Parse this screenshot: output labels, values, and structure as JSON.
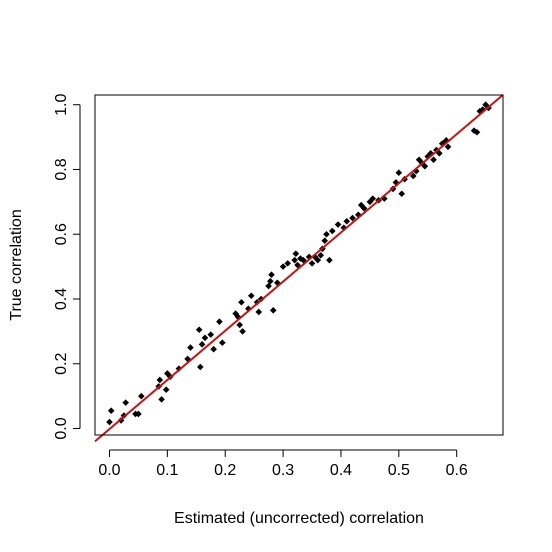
{
  "chart_data": {
    "type": "scatter",
    "title": "",
    "xlabel": "Estimated (uncorrected) correlation",
    "ylabel": "True correlation",
    "xlim": [
      -0.025,
      0.68
    ],
    "ylim": [
      -0.02,
      1.03
    ],
    "xticks": [
      0.0,
      0.1,
      0.2,
      0.3,
      0.4,
      0.5,
      0.6
    ],
    "xtick_labels": [
      "0.0",
      "0.1",
      "0.2",
      "0.3",
      "0.4",
      "0.5",
      "0.6"
    ],
    "yticks": [
      0.0,
      0.2,
      0.4,
      0.6,
      0.8,
      1.0
    ],
    "ytick_labels": [
      "0.0",
      "0.2",
      "0.4",
      "0.6",
      "0.8",
      "1.0"
    ],
    "grid": false,
    "point_color": "#000000",
    "line_color": "#cc1111",
    "fit_line": {
      "intercept": -0.0018,
      "slope": 1.518
    },
    "points": [
      [
        0.0,
        0.02
      ],
      [
        0.003,
        0.055
      ],
      [
        0.02,
        0.025
      ],
      [
        0.025,
        0.04
      ],
      [
        0.028,
        0.08
      ],
      [
        0.045,
        0.045
      ],
      [
        0.05,
        0.045
      ],
      [
        0.055,
        0.1
      ],
      [
        0.085,
        0.13
      ],
      [
        0.087,
        0.15
      ],
      [
        0.09,
        0.09
      ],
      [
        0.098,
        0.12
      ],
      [
        0.1,
        0.17
      ],
      [
        0.105,
        0.16
      ],
      [
        0.12,
        0.185
      ],
      [
        0.135,
        0.215
      ],
      [
        0.14,
        0.25
      ],
      [
        0.155,
        0.305
      ],
      [
        0.157,
        0.19
      ],
      [
        0.16,
        0.26
      ],
      [
        0.165,
        0.28
      ],
      [
        0.175,
        0.29
      ],
      [
        0.18,
        0.245
      ],
      [
        0.19,
        0.33
      ],
      [
        0.195,
        0.265
      ],
      [
        0.218,
        0.355
      ],
      [
        0.222,
        0.345
      ],
      [
        0.225,
        0.32
      ],
      [
        0.228,
        0.39
      ],
      [
        0.23,
        0.3
      ],
      [
        0.24,
        0.37
      ],
      [
        0.245,
        0.41
      ],
      [
        0.255,
        0.39
      ],
      [
        0.258,
        0.36
      ],
      [
        0.262,
        0.4
      ],
      [
        0.275,
        0.44
      ],
      [
        0.278,
        0.455
      ],
      [
        0.28,
        0.475
      ],
      [
        0.283,
        0.365
      ],
      [
        0.29,
        0.45
      ],
      [
        0.3,
        0.5
      ],
      [
        0.308,
        0.51
      ],
      [
        0.32,
        0.52
      ],
      [
        0.322,
        0.54
      ],
      [
        0.325,
        0.505
      ],
      [
        0.33,
        0.525
      ],
      [
        0.335,
        0.52
      ],
      [
        0.345,
        0.53
      ],
      [
        0.35,
        0.51
      ],
      [
        0.355,
        0.53
      ],
      [
        0.36,
        0.52
      ],
      [
        0.365,
        0.535
      ],
      [
        0.368,
        0.555
      ],
      [
        0.372,
        0.58
      ],
      [
        0.375,
        0.6
      ],
      [
        0.38,
        0.52
      ],
      [
        0.385,
        0.61
      ],
      [
        0.395,
        0.63
      ],
      [
        0.405,
        0.62
      ],
      [
        0.41,
        0.64
      ],
      [
        0.42,
        0.65
      ],
      [
        0.43,
        0.66
      ],
      [
        0.435,
        0.69
      ],
      [
        0.44,
        0.68
      ],
      [
        0.45,
        0.7
      ],
      [
        0.455,
        0.71
      ],
      [
        0.465,
        0.705
      ],
      [
        0.475,
        0.71
      ],
      [
        0.49,
        0.74
      ],
      [
        0.495,
        0.76
      ],
      [
        0.5,
        0.79
      ],
      [
        0.505,
        0.725
      ],
      [
        0.51,
        0.77
      ],
      [
        0.525,
        0.78
      ],
      [
        0.53,
        0.795
      ],
      [
        0.535,
        0.83
      ],
      [
        0.54,
        0.82
      ],
      [
        0.545,
        0.81
      ],
      [
        0.55,
        0.84
      ],
      [
        0.555,
        0.85
      ],
      [
        0.56,
        0.83
      ],
      [
        0.565,
        0.86
      ],
      [
        0.57,
        0.85
      ],
      [
        0.575,
        0.88
      ],
      [
        0.58,
        0.885
      ],
      [
        0.582,
        0.89
      ],
      [
        0.585,
        0.87
      ],
      [
        0.63,
        0.92
      ],
      [
        0.635,
        0.915
      ],
      [
        0.64,
        0.98
      ],
      [
        0.645,
        0.985
      ],
      [
        0.65,
        1.0
      ],
      [
        0.655,
        0.99
      ]
    ]
  }
}
